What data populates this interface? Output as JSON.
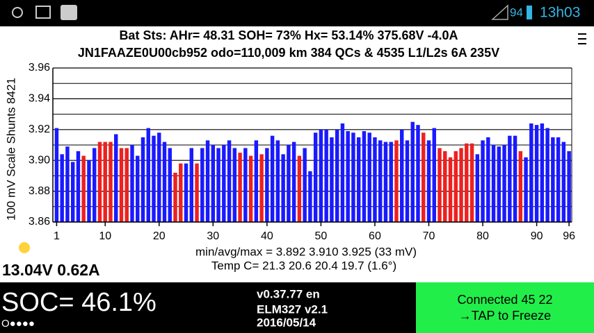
{
  "status_bar": {
    "battery": "94",
    "time": "13h03"
  },
  "header": {
    "line1": "Bat Sts:  AHr= 48.31  SOH= 73%   Hx= 53.14%   375.68V -4.0A",
    "line2": "JN1FAAZE0U00cb952 odo=110,009 km  384 QCs & 4535 L1/L2s 6A 235V"
  },
  "chart_data": {
    "type": "bar",
    "y_label": "100 mV Scale  Shunts 8421",
    "x": [
      1,
      2,
      3,
      4,
      5,
      6,
      7,
      8,
      9,
      10,
      11,
      12,
      13,
      14,
      15,
      16,
      17,
      18,
      19,
      20,
      21,
      22,
      23,
      24,
      25,
      26,
      27,
      28,
      29,
      30,
      31,
      32,
      33,
      34,
      35,
      36,
      37,
      38,
      39,
      40,
      41,
      42,
      43,
      44,
      45,
      46,
      47,
      48,
      49,
      50,
      51,
      52,
      53,
      54,
      55,
      56,
      57,
      58,
      59,
      60,
      61,
      62,
      63,
      64,
      65,
      66,
      67,
      68,
      69,
      70,
      71,
      72,
      73,
      74,
      75,
      76,
      77,
      78,
      79,
      80,
      81,
      82,
      83,
      84,
      85,
      86,
      87,
      88,
      89,
      90,
      91,
      92,
      93,
      94,
      95,
      96
    ],
    "values": [
      3.921,
      3.904,
      3.909,
      3.899,
      3.906,
      3.903,
      3.9,
      3.908,
      3.912,
      3.912,
      3.912,
      3.917,
      3.908,
      3.908,
      3.91,
      3.903,
      3.915,
      3.921,
      3.916,
      3.918,
      3.912,
      3.908,
      3.892,
      3.898,
      3.898,
      3.908,
      3.898,
      3.908,
      3.913,
      3.91,
      3.908,
      3.91,
      3.913,
      3.908,
      3.905,
      3.908,
      3.903,
      3.913,
      3.904,
      3.908,
      3.916,
      3.913,
      3.904,
      3.91,
      3.912,
      3.903,
      3.908,
      3.893,
      3.918,
      3.92,
      3.92,
      3.915,
      3.92,
      3.924,
      3.919,
      3.918,
      3.915,
      3.919,
      3.918,
      3.915,
      3.913,
      3.912,
      3.912,
      3.913,
      3.92,
      3.913,
      3.925,
      3.923,
      3.918,
      3.913,
      3.921,
      3.908,
      3.906,
      3.902,
      3.906,
      3.908,
      3.911,
      3.911,
      3.904,
      3.913,
      3.915,
      3.91,
      3.909,
      3.91,
      3.916,
      3.916,
      3.906,
      3.902,
      3.924,
      3.923,
      3.924,
      3.921,
      3.915,
      3.915,
      3.912,
      3.906
    ],
    "colors": [
      "#1a1aff",
      "#1a1aff",
      "#1a1aff",
      "#1a1aff",
      "#1a1aff",
      "#ee2020",
      "#1a1aff",
      "#1a1aff",
      "#ee2020",
      "#ee2020",
      "#ee2020",
      "#1a1aff",
      "#ee2020",
      "#ee2020",
      "#1a1aff",
      "#1a1aff",
      "#1a1aff",
      "#1a1aff",
      "#1a1aff",
      "#1a1aff",
      "#1a1aff",
      "#1a1aff",
      "#ee2020",
      "#ee2020",
      "#1a1aff",
      "#1a1aff",
      "#ee2020",
      "#1a1aff",
      "#1a1aff",
      "#1a1aff",
      "#1a1aff",
      "#1a1aff",
      "#1a1aff",
      "#1a1aff",
      "#ee2020",
      "#1a1aff",
      "#ee2020",
      "#1a1aff",
      "#ee2020",
      "#1a1aff",
      "#1a1aff",
      "#1a1aff",
      "#1a1aff",
      "#1a1aff",
      "#1a1aff",
      "#ee2020",
      "#1a1aff",
      "#1a1aff",
      "#1a1aff",
      "#1a1aff",
      "#1a1aff",
      "#1a1aff",
      "#1a1aff",
      "#1a1aff",
      "#1a1aff",
      "#1a1aff",
      "#1a1aff",
      "#1a1aff",
      "#1a1aff",
      "#1a1aff",
      "#1a1aff",
      "#1a1aff",
      "#1a1aff",
      "#ee2020",
      "#1a1aff",
      "#1a1aff",
      "#1a1aff",
      "#1a1aff",
      "#ee2020",
      "#1a1aff",
      "#1a1aff",
      "#ee2020",
      "#ee2020",
      "#ee2020",
      "#ee2020",
      "#ee2020",
      "#ee2020",
      "#ee2020",
      "#1a1aff",
      "#1a1aff",
      "#1a1aff",
      "#1a1aff",
      "#1a1aff",
      "#1a1aff",
      "#1a1aff",
      "#1a1aff",
      "#ee2020",
      "#1a1aff",
      "#1a1aff",
      "#1a1aff",
      "#1a1aff",
      "#1a1aff",
      "#1a1aff",
      "#1a1aff",
      "#1a1aff",
      "#1a1aff"
    ],
    "xlim": [
      0.3,
      96.5
    ],
    "xticks": [
      1,
      10,
      20,
      30,
      40,
      50,
      60,
      70,
      80,
      90,
      96
    ],
    "ylim": [
      3.86,
      3.96
    ],
    "yticks": [
      3.86,
      3.88,
      {
        "value": 3.9,
        "label": "3.90"
      },
      3.92,
      3.94,
      3.96
    ],
    "minor_yticks": [
      3.87,
      3.89,
      3.91,
      3.93,
      3.95
    ],
    "grid": true
  },
  "stats": {
    "minmax": "min/avg/max = 3.892 3.910 3.925  (33 mV)",
    "temp": "Temp C= 21.3  20.6  20.4  19.7  (1.6°)",
    "aux": "13.04V 0.62A"
  },
  "footer": {
    "soc": "SOC= 46.1%",
    "dots": "O●●●●",
    "version": "v0.37.77 en",
    "elm": "ELM327 v2.1",
    "date": "2016/05/14",
    "connected": "Connected 45 22",
    "tap": "→TAP to Freeze"
  }
}
